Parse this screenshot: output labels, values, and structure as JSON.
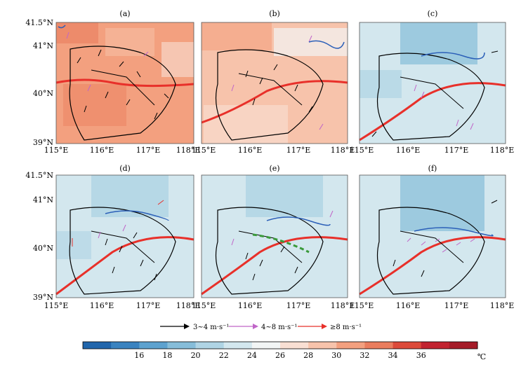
{
  "panels": [
    {
      "label": "(a)",
      "theme": "warm"
    },
    {
      "label": "(b)",
      "theme": "mild"
    },
    {
      "label": "(c)",
      "theme": "cool"
    },
    {
      "label": "(d)",
      "theme": "cool"
    },
    {
      "label": "(e)",
      "theme": "cool"
    },
    {
      "label": "(f)",
      "theme": "cool"
    }
  ],
  "axes": {
    "lon_ticks": [
      "115°E",
      "116°E",
      "117°E",
      "118°E"
    ],
    "lat_ticks": [
      "41.5°N",
      "41°N",
      "40°N",
      "39°N"
    ],
    "lon_range": [
      115,
      118
    ],
    "lat_range": [
      39,
      41.5
    ]
  },
  "wind_legend": [
    {
      "label": "3~4 m·s⁻¹",
      "color": "#000000"
    },
    {
      "label": "4~8 m·s⁻¹",
      "color": "#c065c8"
    },
    {
      "label": "≥8 m·s⁻¹",
      "color": "#e8302a"
    }
  ],
  "colorbar": {
    "ticks": [
      "16",
      "18",
      "20",
      "22",
      "24",
      "26",
      "28",
      "30",
      "32",
      "34",
      "36"
    ],
    "unit": "℃",
    "colors": [
      "#2166ac",
      "#3a83c0",
      "#5da2cf",
      "#86bdd9",
      "#afd4e4",
      "#d3e7ee",
      "#f2f5f5",
      "#f9dfd3",
      "#f7c3ab",
      "#f3a07f",
      "#ea7d5e",
      "#dc4a3a",
      "#c22330",
      "#a51b28"
    ]
  }
}
